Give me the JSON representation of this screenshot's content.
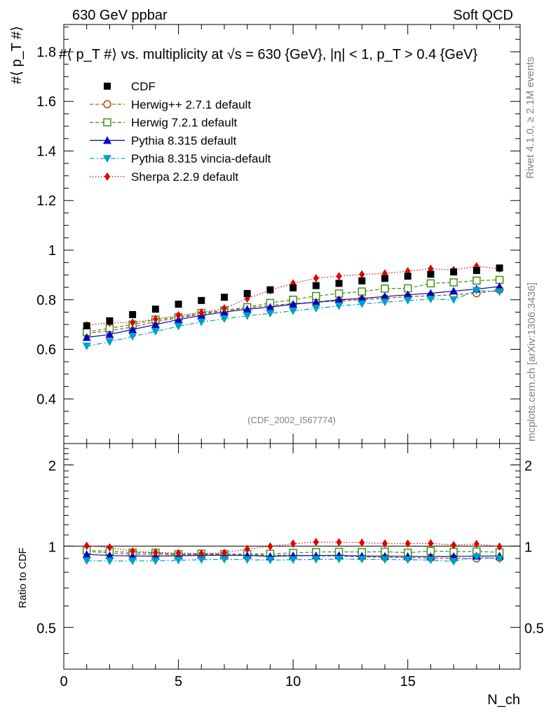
{
  "header": {
    "left": "630 GeV ppbar",
    "right": "Soft QCD"
  },
  "side_labels": {
    "rivet": "Rivet 4.1.0, ≥ 2.1M events",
    "mcplots": "mcplots.cern.ch [arXiv:1306.3436]"
  },
  "chart_data": {
    "type": "scatter",
    "title": "#⟨ p_T #⟩ vs. multiplicity at √s = 630 {GeV}, |η| < 1, p_T > 0.4 {GeV}",
    "analysis_tag": "(CDF_2002_I567774)",
    "ylabel": "#⟨ p_T #⟩",
    "xlabel": "N_ch",
    "ratio_ylabel": "Ratio to CDF",
    "xlim": [
      0,
      19.9
    ],
    "ylim": [
      0.22,
      1.91
    ],
    "ratio_ylim": [
      0.35,
      2.4
    ],
    "x_ticks": [
      0,
      5,
      10,
      15
    ],
    "y_ticks": [
      0.4,
      0.6,
      0.8,
      1,
      1.2,
      1.4,
      1.6,
      1.8
    ],
    "ratio_ticks": [
      0.5,
      1,
      2
    ],
    "x": [
      1,
      2,
      3,
      4,
      5,
      6,
      7,
      8,
      9,
      10,
      11,
      12,
      13,
      14,
      15,
      16,
      17,
      18,
      19
    ],
    "series": [
      {
        "name": "CDF",
        "color": "#000000",
        "marker": "square-filled",
        "line": "none",
        "values": [
          0.695,
          0.715,
          0.74,
          0.762,
          0.782,
          0.797,
          0.81,
          0.825,
          0.84,
          0.848,
          0.857,
          0.866,
          0.876,
          0.886,
          0.895,
          0.903,
          0.912,
          0.918,
          0.928
        ]
      },
      {
        "name": "Herwig++ 2.7.1 default",
        "color": "#a05000",
        "marker": "circle-open",
        "line": "dashed",
        "values": [
          0.664,
          0.675,
          0.69,
          0.712,
          0.727,
          0.742,
          0.755,
          0.767,
          0.777,
          0.784,
          0.79,
          0.795,
          0.8,
          0.806,
          0.812,
          0.816,
          0.82,
          0.826,
          0.84
        ]
      },
      {
        "name": "Herwig 7.2.1 default",
        "color": "#409010",
        "marker": "square-open",
        "line": "dashed",
        "values": [
          0.67,
          0.685,
          0.7,
          0.72,
          0.73,
          0.747,
          0.757,
          0.77,
          0.787,
          0.8,
          0.815,
          0.825,
          0.833,
          0.845,
          0.846,
          0.866,
          0.87,
          0.877,
          0.88
        ]
      },
      {
        "name": "Pythia 8.315 default",
        "color": "#0000c8",
        "marker": "triangle-up",
        "line": "solid",
        "values": [
          0.648,
          0.66,
          0.68,
          0.7,
          0.72,
          0.737,
          0.75,
          0.762,
          0.77,
          0.782,
          0.79,
          0.8,
          0.805,
          0.813,
          0.82,
          0.826,
          0.835,
          0.843,
          0.853
        ]
      },
      {
        "name": "Pythia 8.315 vincia-default",
        "color": "#00a0c0",
        "marker": "triangle-down",
        "line": "dashdot",
        "values": [
          0.613,
          0.63,
          0.652,
          0.672,
          0.693,
          0.71,
          0.723,
          0.735,
          0.745,
          0.755,
          0.765,
          0.775,
          0.783,
          0.79,
          0.797,
          0.802,
          0.8,
          0.837,
          0.832
        ]
      },
      {
        "name": "Sherpa 2.2.9 default",
        "color": "#e00000",
        "marker": "diamond",
        "line": "dotted",
        "values": [
          0.697,
          0.707,
          0.708,
          0.722,
          0.737,
          0.748,
          0.765,
          0.805,
          0.838,
          0.866,
          0.887,
          0.895,
          0.902,
          0.906,
          0.915,
          0.925,
          0.92,
          0.935,
          0.925
        ]
      }
    ]
  }
}
